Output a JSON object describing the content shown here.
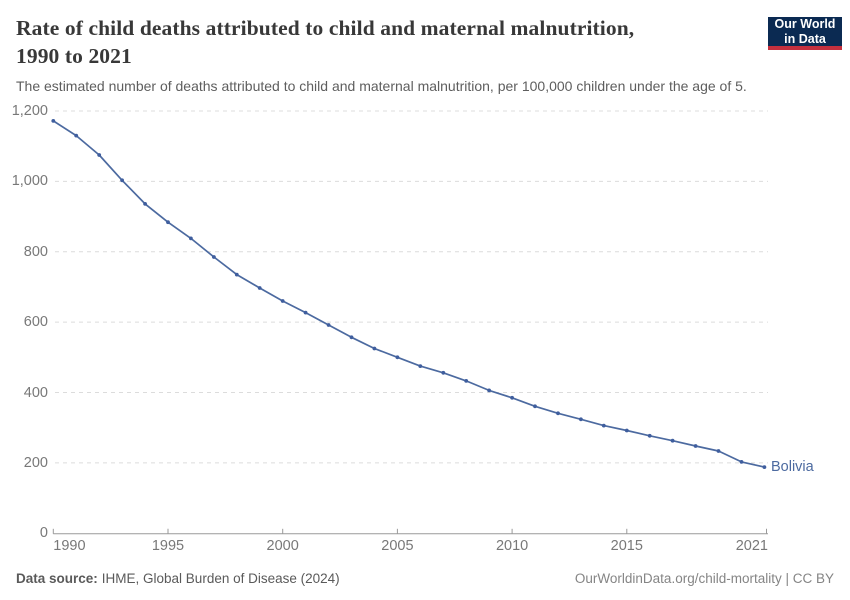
{
  "header": {
    "title_line1": "Rate of child deaths attributed to child and maternal malnutrition,",
    "title_line2": "1990 to 2021",
    "subtitle": "The estimated number of deaths attributed to child and maternal malnutrition, per 100,000 children under the age of 5.",
    "logo": {
      "line1": "Our World",
      "line2": "in Data",
      "bg_color": "#0b2a52",
      "accent_color": "#c5303e"
    }
  },
  "chart_data": {
    "type": "line",
    "title": "Rate of child deaths attributed to child and maternal malnutrition, 1990 to 2021",
    "subtitle": "The estimated number of deaths attributed to child and maternal malnutrition, per 100,000 children under the age of 5.",
    "x": [
      1990,
      1991,
      1992,
      1993,
      1994,
      1995,
      1996,
      1997,
      1998,
      1999,
      2000,
      2001,
      2002,
      2003,
      2004,
      2005,
      2006,
      2007,
      2008,
      2009,
      2010,
      2011,
      2012,
      2013,
      2014,
      2015,
      2016,
      2017,
      2018,
      2019,
      2020,
      2021
    ],
    "series": [
      {
        "name": "Bolivia",
        "color": "#4c6aa0",
        "point_color": "#3f5e9e",
        "values": [
          1172,
          1130,
          1075,
          1003,
          936,
          884,
          838,
          785,
          735,
          697,
          660,
          627,
          592,
          557,
          525,
          500,
          475,
          456,
          433,
          406,
          385,
          361,
          341,
          324,
          306,
          292,
          277,
          263,
          248,
          234,
          203,
          188
        ]
      }
    ],
    "xlabel": "",
    "ylabel": "",
    "xlim": [
      1990,
      2021
    ],
    "ylim": [
      0,
      1200
    ],
    "x_ticks": [
      1990,
      1995,
      2000,
      2005,
      2010,
      2015,
      2021
    ],
    "y_ticks": [
      0,
      200,
      400,
      600,
      800,
      1000,
      1200
    ],
    "grid": "horizontal-dashed",
    "gridline_color": "#dcdcdc",
    "axis_color": "#9a9a9a",
    "tick_label_color": "#787878",
    "legend_position": "end-of-line-label"
  },
  "footer": {
    "source_label": "Data source:",
    "source_text": "IHME, Global Burden of Disease (2024)",
    "link_text": "OurWorldinData.org/child-mortality | CC BY"
  }
}
